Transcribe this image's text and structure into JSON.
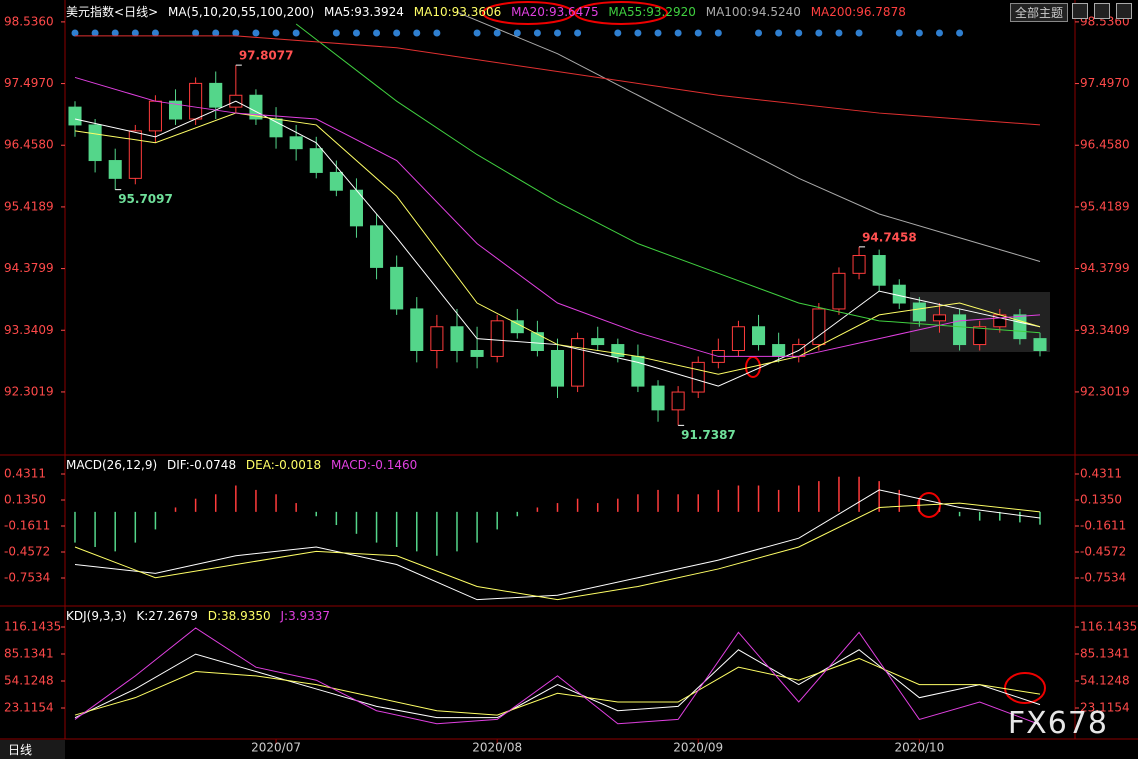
{
  "header": {
    "name": "美元指数",
    "period": "<日线>",
    "ma_params": "MA(5,10,20,55,100,200)",
    "ma5": "MA5:93.3924",
    "ma10": "MA10:93.3606",
    "ma20": "MA20:93.6475",
    "ma55": "MA55:93.2920",
    "ma100": "MA100:94.5240",
    "ma200": "MA200:96.7878",
    "theme": "全部主题"
  },
  "macd_header": {
    "params": "MACD(26,12,9)",
    "dif": "DIF:-0.0748",
    "dea": "DEA:-0.0018",
    "macd": "MACD:-0.1460"
  },
  "kdj_header": {
    "params": "KDJ(9,3,3)",
    "k": "K:27.2679",
    "d": "D:38.9350",
    "j": "J:3.9337"
  },
  "footer": {
    "period": "日线",
    "watermark": "FX678"
  },
  "chart_data": [
    {
      "type": "candlestick",
      "up_color": "#ff3c3c",
      "down_color": "#54d68a",
      "ylim": [
        91.29,
        98.77
      ],
      "yticks": [
        {
          "value": 98.536,
          "label": "98.5360"
        },
        {
          "value": 97.497,
          "label": "97.4970"
        },
        {
          "value": 96.458,
          "label": "96.4580"
        },
        95.4189,
        94.3799,
        93.3409,
        92.3019
      ],
      "candles": [
        [
          97.1,
          97.2,
          96.6,
          96.8
        ],
        [
          96.8,
          96.9,
          96.0,
          96.2
        ],
        [
          96.2,
          96.4,
          95.7097,
          95.9
        ],
        [
          95.9,
          96.8,
          95.8,
          96.7
        ],
        [
          96.7,
          97.3,
          96.5,
          97.2
        ],
        [
          97.2,
          97.4,
          96.8,
          96.9
        ],
        [
          96.9,
          97.6,
          96.8,
          97.5
        ],
        [
          97.5,
          97.7,
          96.9,
          97.1
        ],
        [
          97.1,
          97.8077,
          97.0,
          97.3
        ],
        [
          97.3,
          97.4,
          96.8,
          96.9
        ],
        [
          96.9,
          97.1,
          96.4,
          96.6
        ],
        [
          96.6,
          96.8,
          96.2,
          96.4
        ],
        [
          96.4,
          96.6,
          95.9,
          96.0
        ],
        [
          96.0,
          96.2,
          95.6,
          95.7
        ],
        [
          95.7,
          95.9,
          94.9,
          95.1
        ],
        [
          95.1,
          95.3,
          94.2,
          94.4
        ],
        [
          94.4,
          94.6,
          93.6,
          93.7
        ],
        [
          93.7,
          93.9,
          92.8,
          93.0
        ],
        [
          93.0,
          93.6,
          92.7,
          93.4
        ],
        [
          93.4,
          93.7,
          92.8,
          93.0
        ],
        [
          93.0,
          93.4,
          92.7,
          92.9
        ],
        [
          92.9,
          93.6,
          92.8,
          93.5
        ],
        [
          93.5,
          93.7,
          93.2,
          93.3
        ],
        [
          93.3,
          93.5,
          92.9,
          93.0
        ],
        [
          93.0,
          93.2,
          92.2,
          92.4
        ],
        [
          92.4,
          93.3,
          92.3,
          93.2
        ],
        [
          93.2,
          93.4,
          93.0,
          93.1
        ],
        [
          93.1,
          93.2,
          92.8,
          92.9
        ],
        [
          92.9,
          93.1,
          92.3,
          92.4
        ],
        [
          92.4,
          92.5,
          91.8,
          92.0
        ],
        [
          92.0,
          92.4,
          91.7387,
          92.3
        ],
        [
          92.3,
          92.9,
          92.2,
          92.8
        ],
        [
          92.8,
          93.2,
          92.7,
          93.0
        ],
        [
          93.0,
          93.5,
          92.9,
          93.4
        ],
        [
          93.4,
          93.6,
          93.0,
          93.1
        ],
        [
          93.1,
          93.3,
          92.8,
          92.9
        ],
        [
          92.9,
          93.2,
          92.8,
          93.1
        ],
        [
          93.1,
          93.8,
          93.0,
          93.7
        ],
        [
          93.7,
          94.4,
          93.6,
          94.3
        ],
        [
          94.3,
          94.7458,
          94.2,
          94.6
        ],
        [
          94.6,
          94.7,
          94.0,
          94.1
        ],
        [
          94.1,
          94.2,
          93.7,
          93.8
        ],
        [
          93.8,
          93.9,
          93.4,
          93.5
        ],
        [
          93.5,
          93.8,
          93.3,
          93.6
        ],
        [
          93.6,
          93.7,
          93.0,
          93.1
        ],
        [
          93.1,
          93.5,
          93.0,
          93.4
        ],
        [
          93.4,
          93.7,
          93.3,
          93.6
        ],
        [
          93.6,
          93.7,
          93.1,
          93.2
        ],
        [
          93.2,
          93.3,
          92.9,
          93.0
        ]
      ],
      "price_labels": [
        97.8077,
        95.7097,
        94.7458,
        91.7387
      ],
      "series": [
        {
          "color": "#ffffff",
          "x": [
            0,
            4,
            8,
            12,
            16,
            20,
            24,
            28,
            32,
            36,
            40,
            44,
            48
          ],
          "values": [
            96.9,
            96.6,
            97.2,
            96.5,
            94.9,
            93.2,
            93.1,
            92.8,
            92.4,
            93.0,
            94.0,
            93.7,
            93.4
          ]
        },
        {
          "color": "#ffff66",
          "x": [
            0,
            4,
            8,
            12,
            16,
            20,
            24,
            28,
            32,
            36,
            40,
            44,
            48
          ],
          "values": [
            96.7,
            96.5,
            97.0,
            96.8,
            95.6,
            93.8,
            93.1,
            92.9,
            92.6,
            92.9,
            93.6,
            93.8,
            93.4
          ]
        },
        {
          "color": "#e040e0",
          "x": [
            0,
            4,
            8,
            12,
            16,
            20,
            24,
            28,
            32,
            36,
            40,
            44,
            48
          ],
          "values": [
            97.6,
            97.2,
            97.0,
            96.9,
            96.2,
            94.8,
            93.8,
            93.3,
            92.9,
            92.9,
            93.2,
            93.5,
            93.6
          ]
        },
        {
          "color": "#40d040",
          "x": [
            11,
            16,
            20,
            24,
            28,
            32,
            36,
            40,
            44,
            48
          ],
          "values": [
            98.5,
            97.2,
            96.3,
            95.5,
            94.8,
            94.3,
            93.8,
            93.5,
            93.4,
            93.3
          ]
        },
        {
          "color": "#aaaaaa",
          "x": [
            19,
            24,
            28,
            32,
            36,
            40,
            44,
            48
          ],
          "values": [
            98.7,
            98.0,
            97.3,
            96.6,
            95.9,
            95.3,
            94.9,
            94.5
          ]
        },
        {
          "color": "#e03030",
          "x": [
            0,
            8,
            16,
            24,
            32,
            40,
            48
          ],
          "values": [
            98.3,
            98.3,
            98.1,
            97.7,
            97.3,
            97.0,
            96.8
          ]
        }
      ]
    },
    {
      "type": "macd",
      "up_color": "#ff3c3c",
      "down_color": "#54d68a",
      "ylim": [
        -1.038,
        0.6133
      ],
      "yticks": [
        0.4311,
        {
          "value": 0.135,
          "label": "0.1350"
        },
        -0.1611,
        -0.4572,
        -0.7534
      ],
      "values": [
        -0.35,
        -0.4,
        -0.45,
        -0.35,
        -0.2,
        0.05,
        0.15,
        0.2,
        0.3,
        0.25,
        0.2,
        0.1,
        -0.05,
        -0.15,
        -0.25,
        -0.35,
        -0.4,
        -0.45,
        -0.5,
        -0.45,
        -0.35,
        -0.2,
        -0.05,
        0.05,
        0.1,
        0.15,
        0.1,
        0.15,
        0.2,
        0.25,
        0.2,
        0.2,
        0.25,
        0.3,
        0.3,
        0.25,
        0.3,
        0.35,
        0.4,
        0.4,
        0.35,
        0.25,
        0.15,
        0.05,
        -0.05,
        -0.1,
        -0.1,
        -0.12,
        -0.146
      ],
      "series": [
        {
          "color": "#ffffff",
          "x": [
            0,
            4,
            8,
            12,
            16,
            20,
            24,
            28,
            32,
            36,
            40,
            44,
            48
          ],
          "values": [
            -0.6,
            -0.7,
            -0.5,
            -0.4,
            -0.6,
            -1.0,
            -0.95,
            -0.75,
            -0.55,
            -0.3,
            0.25,
            0.05,
            -0.07
          ]
        },
        {
          "color": "#ffff66",
          "x": [
            0,
            4,
            8,
            12,
            16,
            20,
            24,
            28,
            32,
            36,
            40,
            44,
            48
          ],
          "values": [
            -0.4,
            -0.75,
            -0.6,
            -0.45,
            -0.5,
            -0.85,
            -1.0,
            -0.85,
            -0.65,
            -0.4,
            0.05,
            0.1,
            0.0
          ]
        }
      ]
    },
    {
      "type": "line",
      "ylim": [
        -11.34,
        135.67
      ],
      "yticks": [
        116.1435,
        85.1341,
        54.1248,
        23.1154
      ],
      "categories": [
        null,
        null,
        null,
        null,
        null,
        null,
        null,
        null,
        null,
        null,
        "2020/07",
        null,
        null,
        null,
        null,
        null,
        null,
        null,
        null,
        null,
        null,
        "2020/08",
        null,
        null,
        null,
        null,
        null,
        null,
        null,
        null,
        null,
        "2020/09",
        null,
        null,
        null,
        null,
        null,
        null,
        null,
        null,
        null,
        null,
        "2020/10",
        null,
        null,
        null,
        null,
        null,
        null
      ],
      "series": [
        {
          "color": "#ffffff",
          "x": [
            0,
            3,
            6,
            9,
            12,
            15,
            18,
            21,
            24,
            27,
            30,
            33,
            36,
            39,
            42,
            45,
            48
          ],
          "values": [
            12,
            45,
            85,
            65,
            45,
            25,
            12,
            12,
            50,
            20,
            25,
            90,
            50,
            90,
            35,
            50,
            27
          ]
        },
        {
          "color": "#ffff66",
          "x": [
            0,
            3,
            6,
            9,
            12,
            15,
            18,
            21,
            24,
            27,
            30,
            33,
            36,
            39,
            42,
            45,
            48
          ],
          "values": [
            15,
            35,
            65,
            60,
            50,
            35,
            20,
            15,
            40,
            30,
            30,
            70,
            55,
            80,
            50,
            50,
            39
          ]
        },
        {
          "color": "#e040e0",
          "x": [
            0,
            3,
            6,
            9,
            12,
            15,
            18,
            21,
            24,
            27,
            30,
            33,
            36,
            39,
            42,
            45,
            48
          ],
          "values": [
            10,
            60,
            115,
            70,
            55,
            20,
            5,
            10,
            60,
            5,
            10,
            110,
            30,
            110,
            10,
            30,
            4
          ]
        }
      ]
    }
  ]
}
